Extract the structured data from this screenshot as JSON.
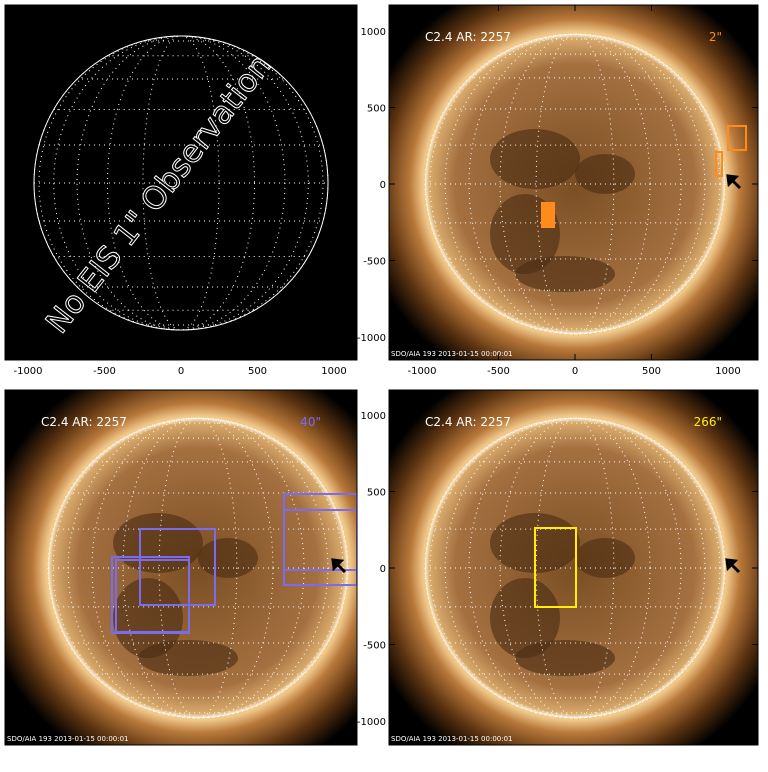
{
  "panels": [
    {
      "annotation": "No EIS 1\" Observation",
      "x_ticks": [
        -1000,
        -500,
        0,
        500,
        1000
      ]
    },
    {
      "label": "C2.4 AR: 2257",
      "fov": "2\"",
      "x_ticks": [
        -1000,
        -500,
        0,
        500,
        1000
      ],
      "y_ticks": [
        1000,
        500,
        0,
        -500,
        -1000
      ],
      "footer": "SDO/AIA 193 2013-01-15 00:00:01"
    },
    {
      "label": "C2.4 AR: 2257",
      "fov": "40\"",
      "footer": "SDO/AIA 193 2013-01-15 00:00:01"
    },
    {
      "label": "C2.4 AR: 2257",
      "fov": "266\"",
      "y_ticks": [
        1000,
        500,
        0,
        -500,
        -1000
      ],
      "footer": "SDO/AIA 193 2013-01-15 00:00:01"
    }
  ]
}
